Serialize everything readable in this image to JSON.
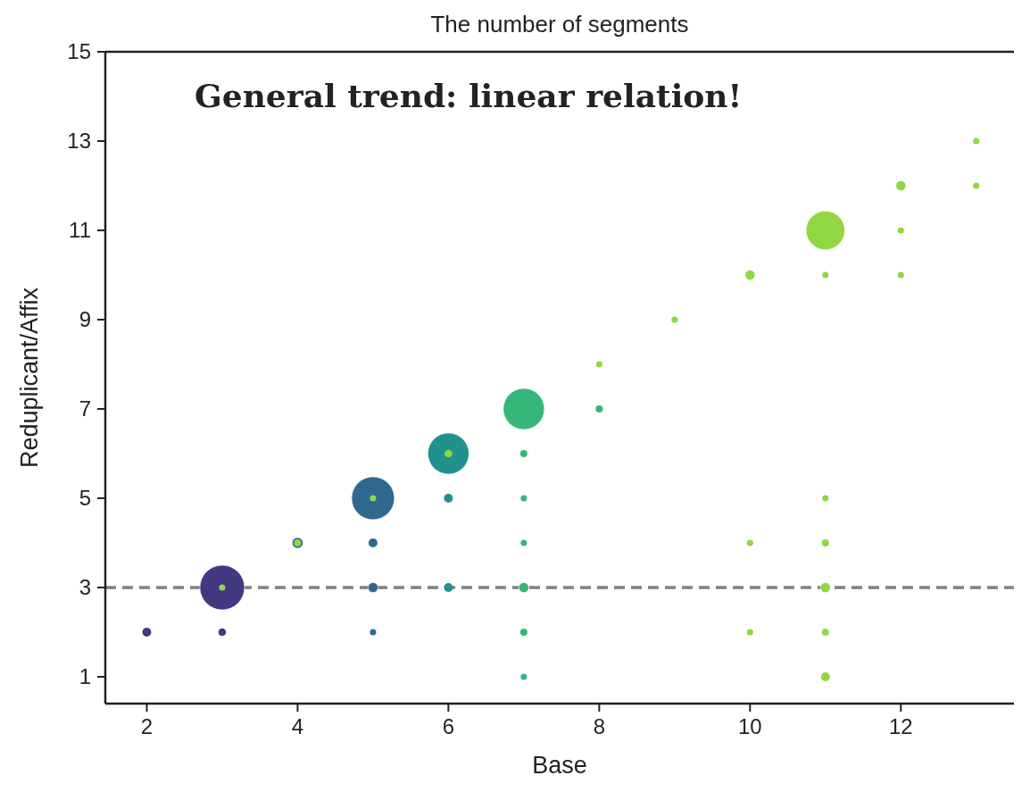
{
  "chart_data": {
    "type": "bubble",
    "title": "The number of segments",
    "xlabel": "Base",
    "ylabel": "Reduplicant/Affix",
    "annotations": [
      "General trend: linear relation!"
    ],
    "xlim": [
      1.45,
      13.5
    ],
    "xticks": [
      2,
      4,
      6,
      8,
      10,
      12
    ],
    "ylim": [
      0.4,
      15
    ],
    "yticks": [
      1,
      3,
      5,
      7,
      9,
      11,
      13,
      15
    ],
    "grid": false,
    "marker": "circle",
    "ref_lines": [
      {
        "axis": "y",
        "value": 3,
        "color": "#808080",
        "line_style": "dashed"
      }
    ],
    "series": [
      {
        "color": "#433983",
        "x": [
          2,
          3,
          3
        ],
        "values": [
          2,
          3,
          2
        ],
        "sizes": [
          0.04,
          1,
          0.03
        ]
      },
      {
        "color": "#30678d",
        "x": [
          4,
          5,
          5,
          5,
          5
        ],
        "values": [
          4,
          5,
          4,
          3,
          2
        ],
        "sizes": [
          0.06,
          0.92,
          0.04,
          0.05,
          0.02
        ]
      },
      {
        "color": "#21918c",
        "x": [
          6,
          6,
          6
        ],
        "values": [
          6,
          5,
          3
        ],
        "sizes": [
          0.85,
          0.04,
          0.04
        ]
      },
      {
        "color": "#35b779",
        "x": [
          7,
          7,
          7,
          7,
          7,
          7,
          7,
          8
        ],
        "values": [
          7,
          6,
          5,
          4,
          3,
          2,
          1,
          7
        ],
        "sizes": [
          0.85,
          0.025,
          0.02,
          0.02,
          0.05,
          0.025,
          0.02,
          0.025
        ]
      },
      {
        "color": "#90d743",
        "x": [
          3,
          4,
          5,
          6,
          8,
          9,
          10,
          11,
          11,
          12,
          12,
          12,
          13,
          13,
          10,
          10,
          11,
          11,
          11,
          11,
          11
        ],
        "values": [
          3,
          4,
          5,
          6,
          8,
          9,
          10,
          11,
          10,
          12,
          11,
          10,
          13,
          12,
          4,
          2,
          5,
          4,
          3,
          2,
          1
        ],
        "sizes": [
          0.02,
          0.025,
          0.02,
          0.03,
          0.02,
          0.02,
          0.05,
          0.75,
          0.02,
          0.05,
          0.02,
          0.02,
          0.02,
          0.02,
          0.02,
          0.02,
          0.02,
          0.025,
          0.05,
          0.025,
          0.04
        ]
      }
    ]
  }
}
